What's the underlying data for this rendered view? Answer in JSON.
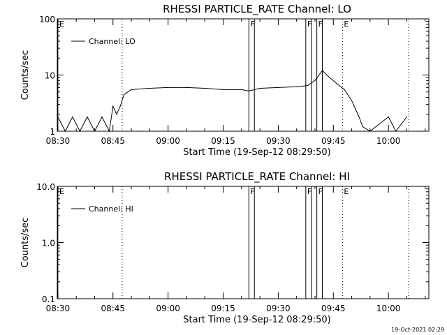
{
  "footer": {
    "timestamp": "19-Oct-2021 02:29"
  },
  "chart_data": [
    {
      "type": "line",
      "title": "RHESSI  PARTICLE_RATE  Channel:  LO",
      "xlabel": "Start Time (19-Sep-12 08:29:50)",
      "ylabel": "Counts/sec",
      "y_scale": "log",
      "ylim": [
        1,
        100
      ],
      "y_ticks": [
        1,
        10,
        100
      ],
      "y_tick_labels": [
        "1",
        "10",
        "100"
      ],
      "xlim": [
        "08:29:50",
        "10:11:00"
      ],
      "x_tick_labels": [
        "08:30",
        "08:45",
        "09:00",
        "09:15",
        "09:30",
        "09:45",
        "10:00"
      ],
      "x_tick_times": [
        "08:30",
        "08:45",
        "09:00",
        "09:15",
        "09:30",
        "09:45",
        "10:00"
      ],
      "legend": {
        "position": "top-left",
        "entries": [
          "Channel: LO"
        ]
      },
      "markers": [
        {
          "label": "E",
          "time": "08:30:00",
          "style": "solid"
        },
        {
          "label": "",
          "time": "08:47:30",
          "style": "dotted"
        },
        {
          "label": "F",
          "time": "09:22:00",
          "style": "solid"
        },
        {
          "label": "",
          "time": "09:23:30",
          "style": "solid"
        },
        {
          "label": "F",
          "time": "09:37:30",
          "style": "solid"
        },
        {
          "label": "",
          "time": "09:39:00",
          "style": "solid"
        },
        {
          "label": "F",
          "time": "09:40:30",
          "style": "solid"
        },
        {
          "label": "",
          "time": "09:42:00",
          "style": "solid"
        },
        {
          "label": "E",
          "time": "09:47:30",
          "style": "dotted"
        },
        {
          "label": "",
          "time": "10:05:30",
          "style": "dotted"
        }
      ],
      "series": [
        {
          "name": "Channel: LO",
          "x": [
            "08:30",
            "08:32",
            "08:34",
            "08:36",
            "08:38",
            "08:40",
            "08:42",
            "08:44",
            "08:45",
            "08:46",
            "08:47",
            "08:48",
            "08:50",
            "08:55",
            "09:00",
            "09:05",
            "09:10",
            "09:15",
            "09:20",
            "09:22",
            "09:25",
            "09:30",
            "09:35",
            "09:38",
            "09:40",
            "09:42",
            "09:44",
            "09:46",
            "09:48",
            "09:50",
            "09:51",
            "09:52",
            "09:53",
            "09:55",
            "10:00",
            "10:02",
            "10:05"
          ],
          "y": [
            1.8,
            1.0,
            1.8,
            1.0,
            1.8,
            1.0,
            1.8,
            1.0,
            2.8,
            2.0,
            2.8,
            4.5,
            5.5,
            5.8,
            6.0,
            6.0,
            5.8,
            5.5,
            5.5,
            5.2,
            5.8,
            6.0,
            6.2,
            6.5,
            8.0,
            12.0,
            9.0,
            7.0,
            5.5,
            3.5,
            2.5,
            1.8,
            1.2,
            1.0,
            1.8,
            1.0,
            1.8
          ]
        }
      ]
    },
    {
      "type": "line",
      "title": "RHESSI  PARTICLE_RATE  Channel:  HI",
      "xlabel": "Start Time (19-Sep-12 08:29:50)",
      "ylabel": "Counts/sec",
      "y_scale": "log",
      "ylim": [
        0.1,
        10
      ],
      "y_ticks": [
        0.1,
        1,
        10
      ],
      "y_tick_labels": [
        "0.1",
        "1.0",
        "10.0"
      ],
      "xlim": [
        "08:29:50",
        "10:11:00"
      ],
      "x_tick_labels": [
        "08:30",
        "08:45",
        "09:00",
        "09:15",
        "09:30",
        "09:45",
        "10:00"
      ],
      "x_tick_times": [
        "08:30",
        "08:45",
        "09:00",
        "09:15",
        "09:30",
        "09:45",
        "10:00"
      ],
      "legend": {
        "position": "top-left",
        "entries": [
          "Channel: HI"
        ]
      },
      "markers": [
        {
          "label": "E",
          "time": "08:30:00",
          "style": "solid"
        },
        {
          "label": "",
          "time": "08:47:30",
          "style": "dotted"
        },
        {
          "label": "F",
          "time": "09:22:00",
          "style": "solid"
        },
        {
          "label": "",
          "time": "09:23:30",
          "style": "solid"
        },
        {
          "label": "F",
          "time": "09:37:30",
          "style": "solid"
        },
        {
          "label": "",
          "time": "09:39:00",
          "style": "solid"
        },
        {
          "label": "F",
          "time": "09:40:30",
          "style": "solid"
        },
        {
          "label": "",
          "time": "09:42:00",
          "style": "solid"
        },
        {
          "label": "E",
          "time": "09:47:30",
          "style": "dotted"
        },
        {
          "label": "",
          "time": "10:05:30",
          "style": "dotted"
        }
      ],
      "series": [
        {
          "name": "Channel: HI",
          "x": [],
          "y": []
        }
      ]
    }
  ]
}
